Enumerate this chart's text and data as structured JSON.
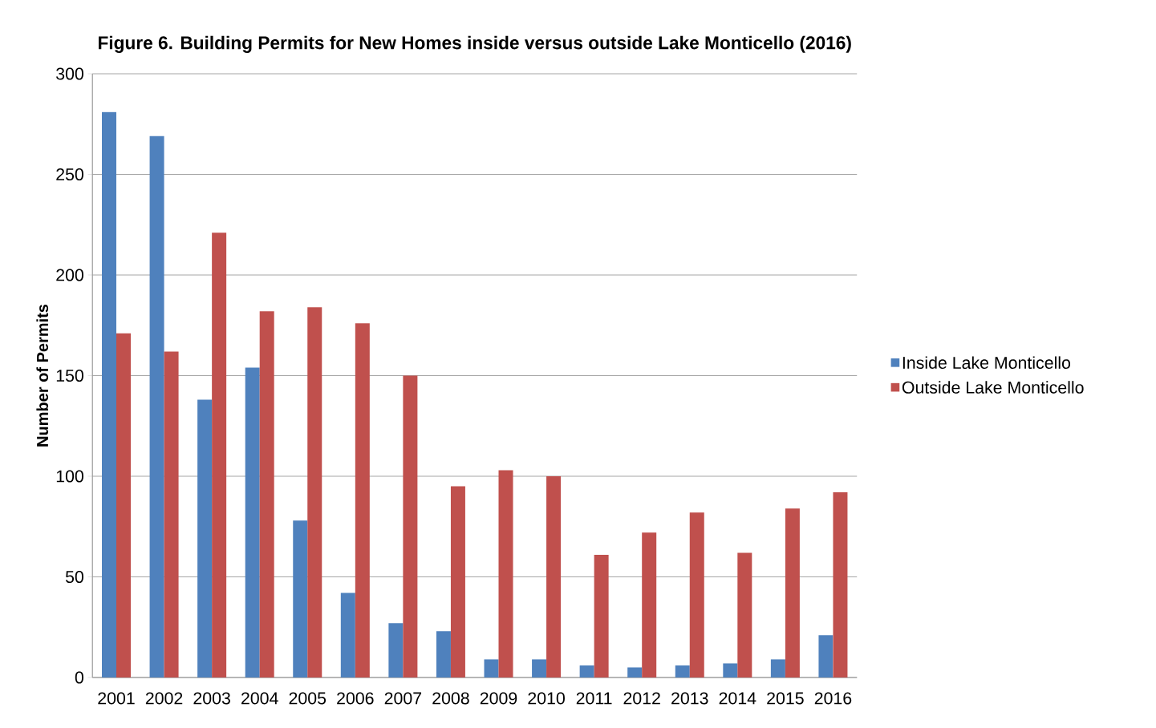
{
  "chart_data": {
    "type": "bar",
    "title": "Figure 6. Building Permits for New Homes inside versus outside Lake Monticello (2016)",
    "ylabel": "Number of Permits",
    "categories": [
      "2001",
      "2002",
      "2003",
      "2004",
      "2005",
      "2006",
      "2007",
      "2008",
      "2009",
      "2010",
      "2011",
      "2012",
      "2013",
      "2014",
      "2015",
      "2016"
    ],
    "series": [
      {
        "name": "Inside Lake Monticello",
        "color": "#4f81bd",
        "values": [
          281,
          269,
          138,
          154,
          78,
          42,
          27,
          23,
          9,
          9,
          6,
          5,
          6,
          7,
          9,
          21
        ]
      },
      {
        "name": "Outside Lake Monticello",
        "color": "#c0504d",
        "values": [
          171,
          162,
          221,
          182,
          184,
          176,
          150,
          95,
          103,
          100,
          61,
          72,
          82,
          62,
          84,
          92
        ]
      }
    ],
    "ylim": [
      0,
      300
    ],
    "yticks": [
      0,
      50,
      100,
      150,
      200,
      250,
      300
    ],
    "grid": "y",
    "legend": "right"
  }
}
